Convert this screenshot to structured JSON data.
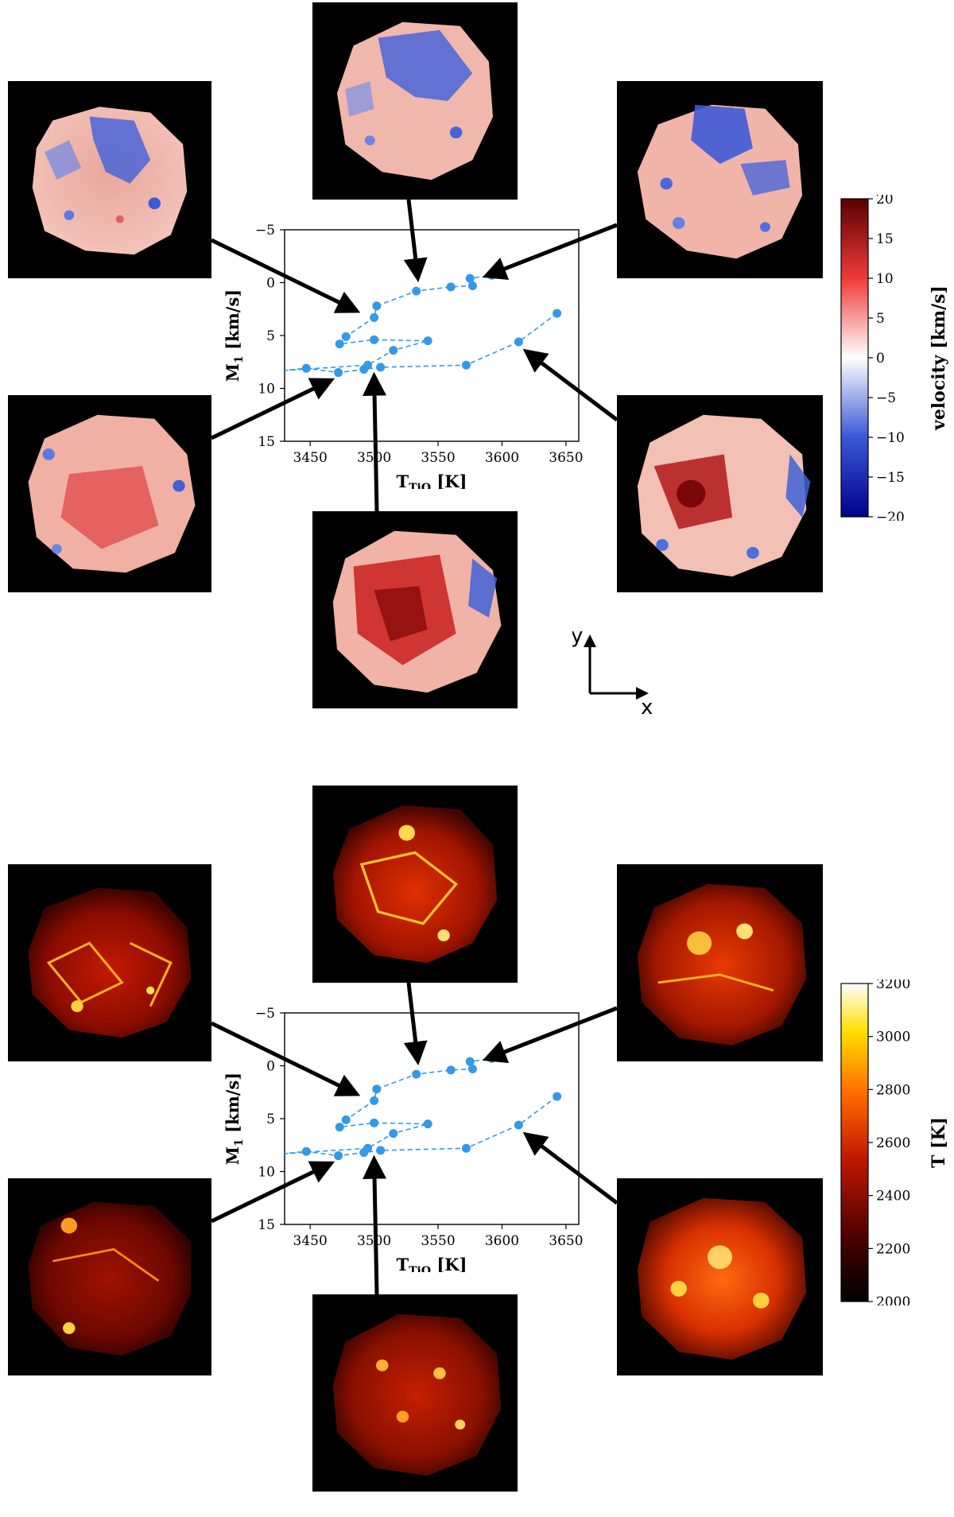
{
  "colors": {
    "series": "#3399e8",
    "arrow": "#000000",
    "panel_bg": "#000000"
  },
  "chart_data": [
    {
      "type": "scatter",
      "xlabel": "T_TiO [K]",
      "ylabel": "M_1 [km/s]",
      "xlim": [
        3430,
        3660
      ],
      "ylim": [
        15,
        -5
      ],
      "xticks": [
        3450,
        3500,
        3550,
        3600,
        3650
      ],
      "yticks": [
        -5,
        0,
        5,
        10,
        15
      ],
      "line_style": "dashed",
      "points": [
        {
          "x": 3643,
          "y": 2.9
        },
        {
          "x": 3613,
          "y": 5.6
        },
        {
          "x": 3572,
          "y": 7.8
        },
        {
          "x": 3505,
          "y": 8.0
        },
        {
          "x": 3492,
          "y": 8.2
        },
        {
          "x": 3472,
          "y": 8.5
        },
        {
          "x": 3447,
          "y": 8.1
        },
        {
          "x": 3430,
          "y": 8.3
        },
        {
          "x": 3495,
          "y": 7.8
        },
        {
          "x": 3515,
          "y": 6.4
        },
        {
          "x": 3542,
          "y": 5.5
        },
        {
          "x": 3500,
          "y": 5.4
        },
        {
          "x": 3473,
          "y": 5.8
        },
        {
          "x": 3478,
          "y": 5.1
        },
        {
          "x": 3500,
          "y": 3.3
        },
        {
          "x": 3502,
          "y": 2.2
        },
        {
          "x": 3533,
          "y": 0.8
        },
        {
          "x": 3560,
          "y": 0.4
        },
        {
          "x": 3577,
          "y": 0.3
        },
        {
          "x": 3575,
          "y": -0.4
        },
        {
          "x": 3592,
          "y": -0.7
        }
      ],
      "colorbar": {
        "label": "velocity [km/s]",
        "ticks": [
          20,
          15,
          10,
          5,
          0,
          -5,
          -10,
          -15,
          -20
        ]
      }
    },
    {
      "type": "scatter",
      "xlabel": "T_TiO [K]",
      "ylabel": "M_1 [km/s]",
      "xlim": [
        3430,
        3660
      ],
      "ylim": [
        15,
        -5
      ],
      "xticks": [
        3450,
        3500,
        3550,
        3600,
        3650
      ],
      "yticks": [
        -5,
        0,
        5,
        10,
        15
      ],
      "line_style": "dashed",
      "points": [
        {
          "x": 3643,
          "y": 2.9
        },
        {
          "x": 3613,
          "y": 5.6
        },
        {
          "x": 3572,
          "y": 7.8
        },
        {
          "x": 3505,
          "y": 8.0
        },
        {
          "x": 3492,
          "y": 8.2
        },
        {
          "x": 3472,
          "y": 8.5
        },
        {
          "x": 3447,
          "y": 8.1
        },
        {
          "x": 3430,
          "y": 8.3
        },
        {
          "x": 3495,
          "y": 7.8
        },
        {
          "x": 3515,
          "y": 6.4
        },
        {
          "x": 3542,
          "y": 5.5
        },
        {
          "x": 3500,
          "y": 5.4
        },
        {
          "x": 3473,
          "y": 5.8
        },
        {
          "x": 3478,
          "y": 5.1
        },
        {
          "x": 3500,
          "y": 3.3
        },
        {
          "x": 3502,
          "y": 2.2
        },
        {
          "x": 3533,
          "y": 0.8
        },
        {
          "x": 3560,
          "y": 0.4
        },
        {
          "x": 3577,
          "y": 0.3
        },
        {
          "x": 3575,
          "y": -0.4
        },
        {
          "x": 3592,
          "y": -0.7
        }
      ],
      "colorbar": {
        "label": "T [K]",
        "ticks": [
          3200,
          3000,
          2800,
          2600,
          2400,
          2200,
          2000
        ]
      }
    }
  ],
  "axes_indicator": {
    "x_label": "x",
    "y_label": "y"
  }
}
